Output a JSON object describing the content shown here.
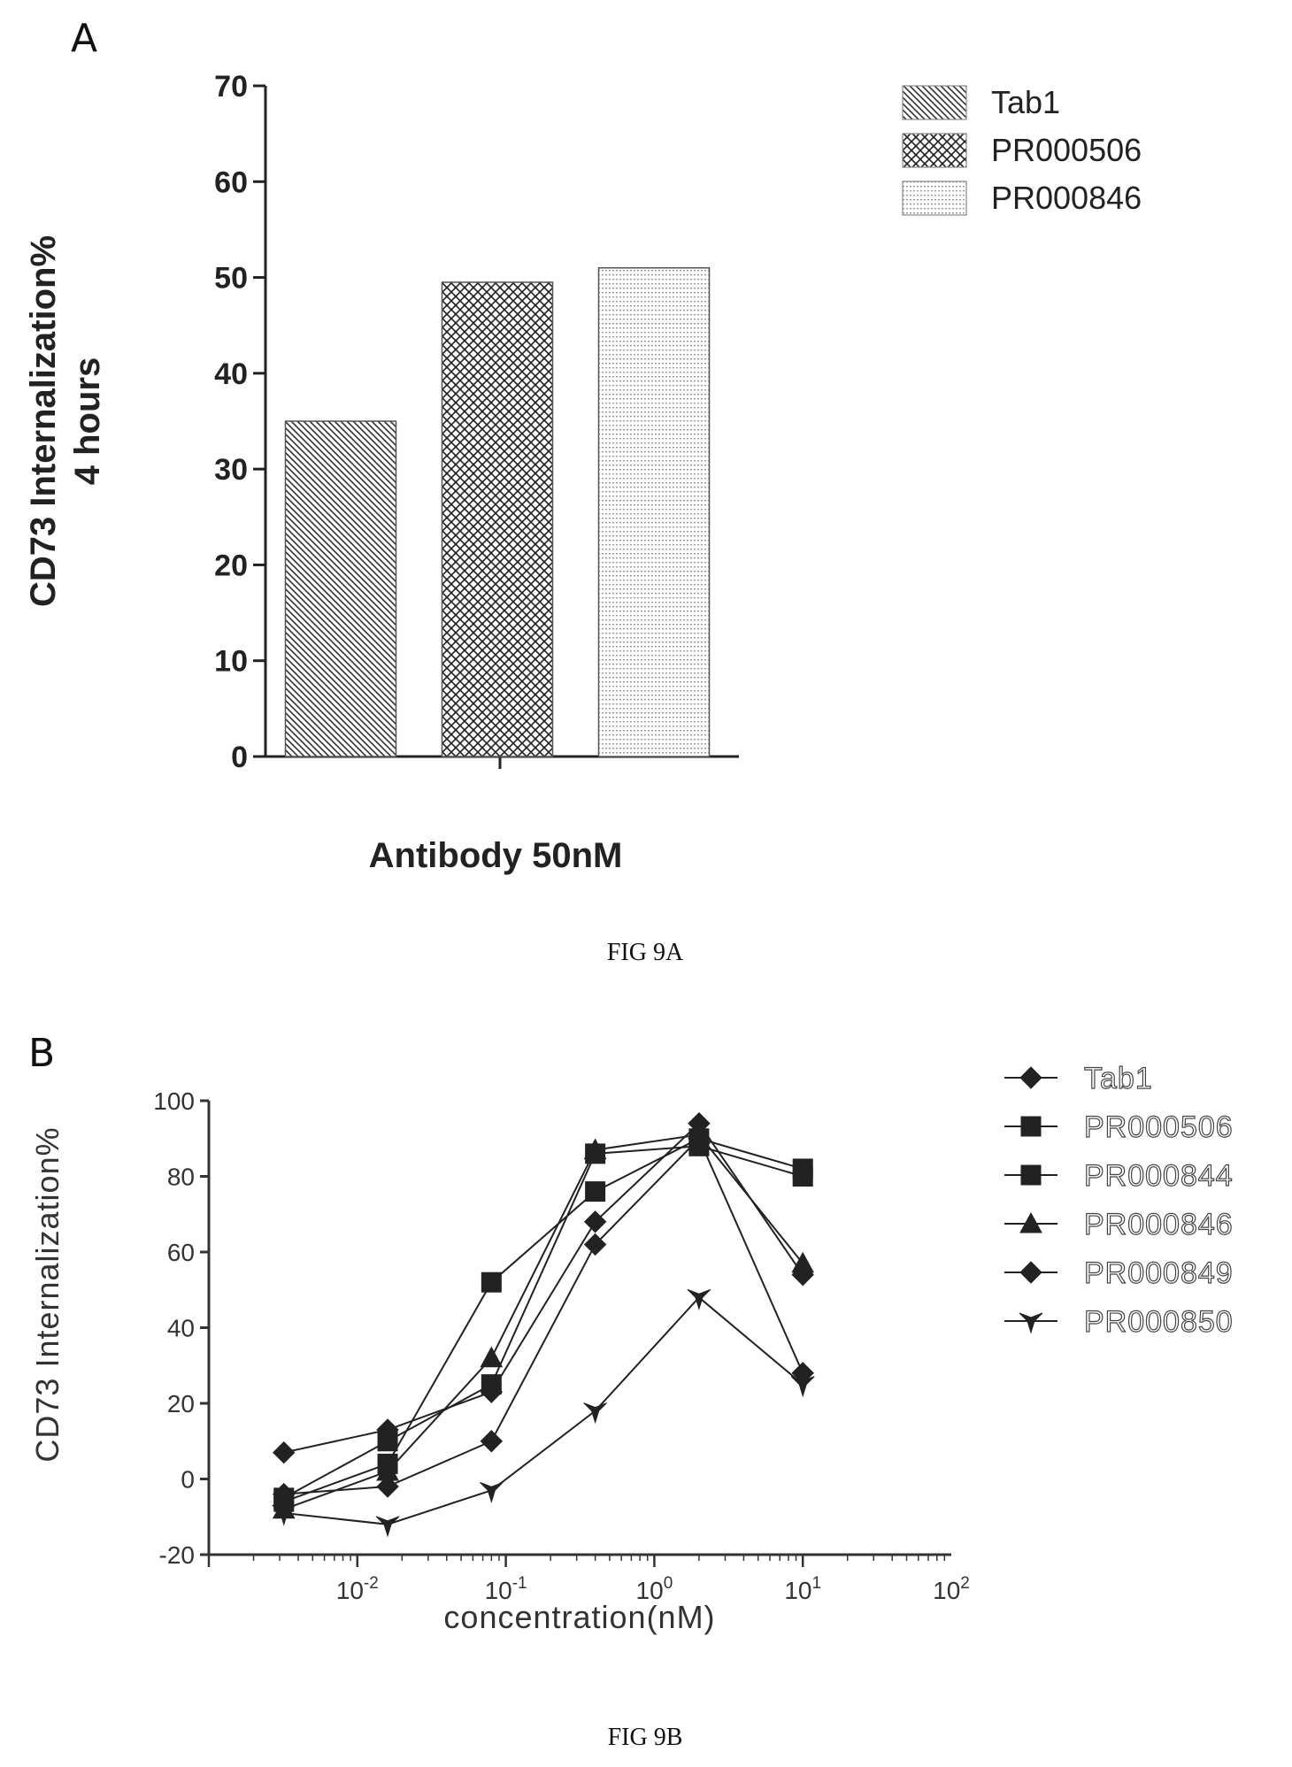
{
  "chart_data": [
    {
      "type": "bar",
      "panel_label": "A",
      "caption": "FIG 9A",
      "categories": [
        "Tab1",
        "PR000506",
        "PR000846"
      ],
      "values": [
        35,
        49.5,
        51
      ],
      "ylabel": "CD73 Internalization%\n4 hours",
      "xlabel": "Antibody 50nM",
      "ylim": [
        0,
        70
      ],
      "yticks": [
        0,
        10,
        20,
        30,
        40,
        50,
        60,
        70
      ],
      "legend": [
        "Tab1",
        "PR000506",
        "PR000846"
      ],
      "legend_position": "top-right",
      "patterns": [
        "diagonal-hatch",
        "crosshatch",
        "fine-dots"
      ]
    },
    {
      "type": "line",
      "panel_label": "B",
      "caption": "FIG 9B",
      "xscale": "log",
      "x": [
        0.0032,
        0.016,
        0.08,
        0.4,
        2,
        10
      ],
      "xlim": [
        0.001,
        100
      ],
      "xticks": [
        0.01,
        0.1,
        1,
        10,
        100
      ],
      "xtick_labels": [
        {
          "base": "10",
          "exp": "-2"
        },
        {
          "base": "10",
          "exp": "-1"
        },
        {
          "base": "10",
          "exp": "0"
        },
        {
          "base": "10",
          "exp": "1"
        },
        {
          "base": "10",
          "exp": "2"
        }
      ],
      "ylim": [
        -20,
        100
      ],
      "yticks": [
        -20,
        0,
        20,
        40,
        60,
        80,
        100
      ],
      "xlabel": "concentration(nM)",
      "ylabel": "CD73 Internalization%",
      "legend_position": "right",
      "series": [
        {
          "name": "Tab1",
          "marker": "diamond",
          "values": [
            7,
            13,
            23,
            68,
            94,
            54
          ]
        },
        {
          "name": "PR000506",
          "marker": "square",
          "values": [
            -6,
            4,
            52,
            76,
            90,
            82
          ]
        },
        {
          "name": "PR000844",
          "marker": "square",
          "values": [
            -5,
            10,
            25,
            86,
            88,
            80
          ]
        },
        {
          "name": "PR000846",
          "marker": "triangle",
          "values": [
            -8,
            2,
            32,
            87,
            91,
            57
          ]
        },
        {
          "name": "PR000849",
          "marker": "diamond",
          "values": [
            -4,
            -2,
            10,
            62,
            90,
            28
          ]
        },
        {
          "name": "PR000850",
          "marker": "star",
          "values": [
            -9,
            -12,
            -3,
            18,
            48,
            25
          ]
        }
      ]
    }
  ]
}
